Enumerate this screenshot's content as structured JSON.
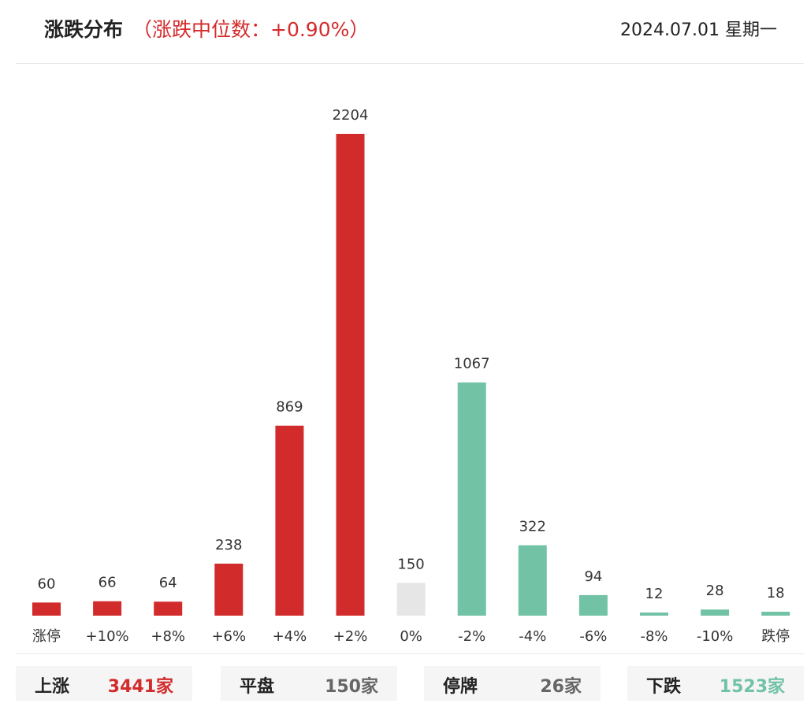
{
  "header": {
    "title": "涨跌分布",
    "subtitle": "（涨跌中位数：+0.90%）",
    "date": "2024.07.01 星期一"
  },
  "chart_data": {
    "type": "bar",
    "categories": [
      "涨停",
      "+10%",
      "+8%",
      "+6%",
      "+4%",
      "+2%",
      "0%",
      "-2%",
      "-4%",
      "-6%",
      "-8%",
      "-10%",
      "跌停"
    ],
    "values": [
      60,
      66,
      64,
      238,
      869,
      2204,
      150,
      1067,
      322,
      94,
      12,
      28,
      18
    ],
    "value_labels": [
      "60",
      "66",
      "64",
      "238",
      "869",
      "2204",
      "150",
      "1067",
      "322",
      "94",
      "12",
      "28",
      "18"
    ],
    "bar_colors": [
      "#d22b2b",
      "#d22b2b",
      "#d22b2b",
      "#d22b2b",
      "#d22b2b",
      "#d22b2b",
      "#e6e6e6",
      "#72c2a6",
      "#72c2a6",
      "#72c2a6",
      "#72c2a6",
      "#72c2a6",
      "#72c2a6"
    ],
    "ylim": [
      0,
      2204
    ]
  },
  "summary": {
    "up": {
      "label": "上涨",
      "value": "3441家",
      "color": "#d22b2b"
    },
    "flat": {
      "label": "平盘",
      "value": "150家",
      "color": "#666666"
    },
    "halt": {
      "label": "停牌",
      "value": "26家",
      "color": "#666666"
    },
    "down": {
      "label": "下跌",
      "value": "1523家",
      "color": "#72c2a6"
    }
  }
}
